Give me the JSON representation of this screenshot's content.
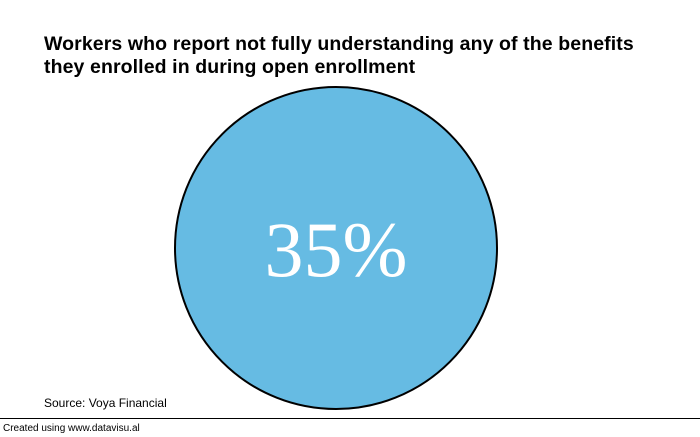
{
  "chart_data": {
    "type": "pie",
    "title": "Workers who report not fully understanding any of the benefits they enrolled in during open enrollment",
    "value": 35,
    "value_label": "35%",
    "unit": "%",
    "fill_color": "#66bbe3",
    "stroke_color": "#000000",
    "label_color": "#ffffff"
  },
  "source": "Source: Voya Financial",
  "credit": "Created using www.datavisu.al"
}
